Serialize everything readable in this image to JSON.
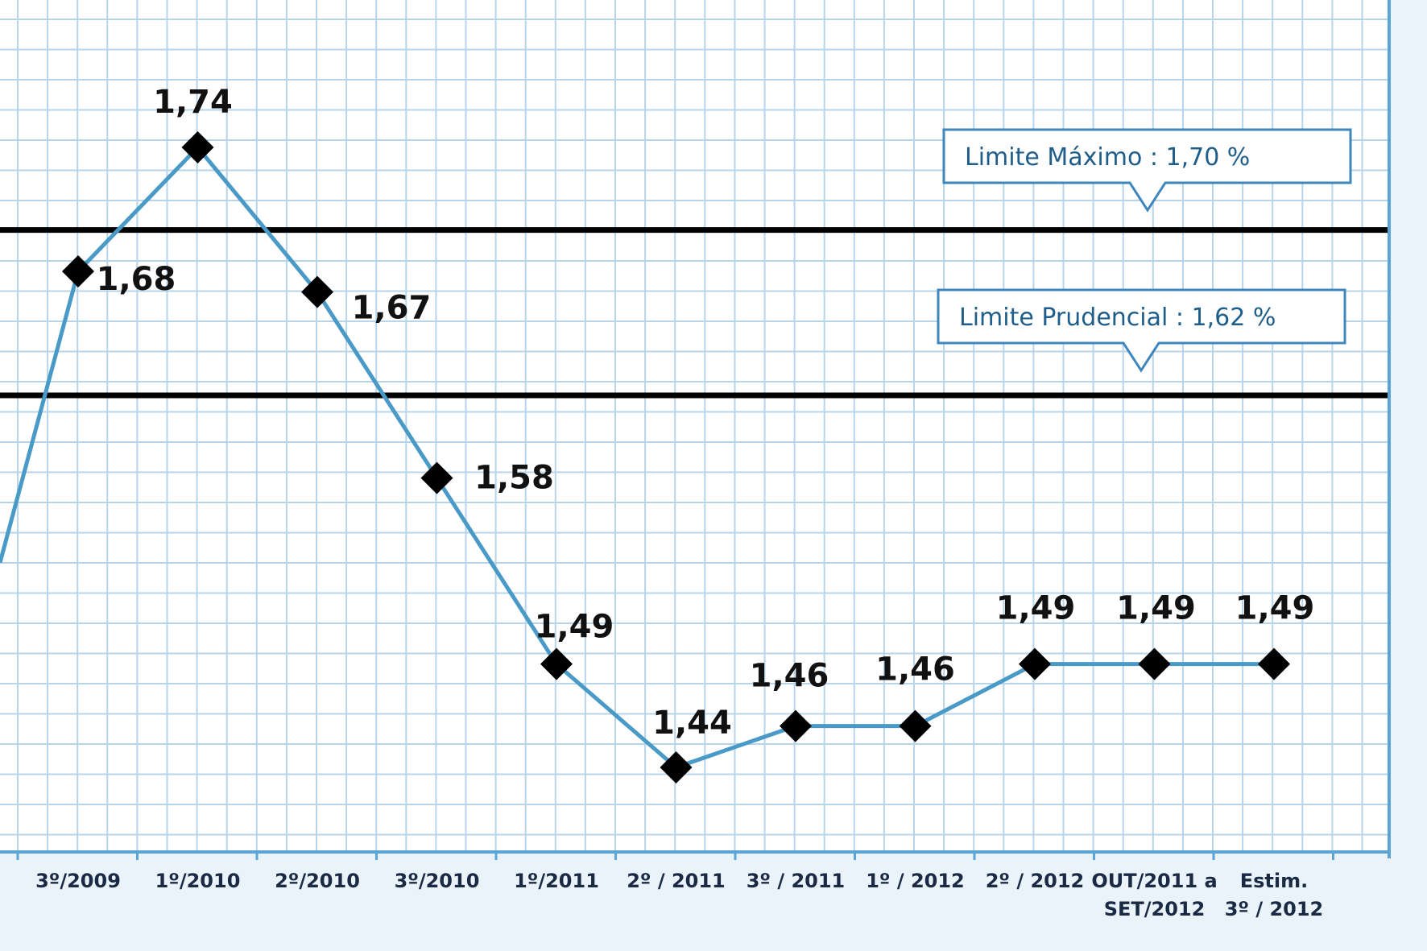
{
  "chart_data": {
    "type": "line",
    "title": "",
    "xlabel": "",
    "ylabel": "",
    "categories": [
      "3º/2009",
      "1º/2010",
      "2º/2010",
      "3º/2010",
      "1º/2011",
      "2º / 2011",
      "3º / 2011",
      "1º / 2012",
      "2º / 2012",
      "OUT/2011 a SET/2012",
      "Estim. 3º / 2012"
    ],
    "category_lines": [
      [
        "3º/2009"
      ],
      [
        "1º/2010"
      ],
      [
        "2º/2010"
      ],
      [
        "3º/2010"
      ],
      [
        "1º/2011"
      ],
      [
        "2º / 2011"
      ],
      [
        "3º / 2011"
      ],
      [
        "1º / 2012"
      ],
      [
        "2º / 2012"
      ],
      [
        "OUT/2011 a",
        "SET/2012"
      ],
      [
        "Estim.",
        "3º / 2012"
      ]
    ],
    "series": [
      {
        "values": [
          1.68,
          1.74,
          1.67,
          1.58,
          1.49,
          1.44,
          1.46,
          1.46,
          1.49,
          1.49,
          1.49
        ],
        "labels": [
          "1,68",
          "1,74",
          "1,67",
          "1,58",
          "1,49",
          "1,44",
          "1,46",
          "1,46",
          "1,49",
          "1,49",
          "1,49"
        ],
        "color": "#4a9ac8",
        "marker": "diamond",
        "marker_color": "#000000"
      }
    ],
    "leading_value_offscreen": 1.55,
    "reference_lines": [
      {
        "value": 1.7,
        "label": "Limite Máximo  :  1,70 %",
        "color": "#000000"
      },
      {
        "value": 1.62,
        "label": "Limite Prudencial  :  1,62 %",
        "color": "#000000"
      }
    ],
    "ylim": [
      1.4,
      1.78
    ],
    "grid": true,
    "colors": {
      "background": "#eaf2fa",
      "plot_background": "#ffffff",
      "grid": "#b7d5ea",
      "axis": "#5aa5d6",
      "callout_border": "#3f86bd",
      "callout_text": "#1f5d8a"
    }
  }
}
